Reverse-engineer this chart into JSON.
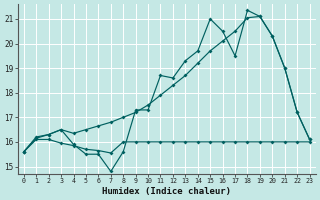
{
  "xlabel": "Humidex (Indice chaleur)",
  "background_color": "#c5e8e5",
  "grid_color": "#ffffff",
  "line_color": "#006060",
  "xlim": [
    -0.5,
    23.5
  ],
  "ylim": [
    14.7,
    21.6
  ],
  "x_ticks": [
    0,
    1,
    2,
    3,
    4,
    5,
    6,
    7,
    8,
    9,
    10,
    11,
    12,
    13,
    14,
    15,
    16,
    17,
    18,
    19,
    20,
    21,
    22,
    23
  ],
  "y_ticks": [
    15,
    16,
    17,
    18,
    19,
    20,
    21
  ],
  "line1_y": [
    15.6,
    16.2,
    16.3,
    16.5,
    15.9,
    15.5,
    15.5,
    14.8,
    15.6,
    17.3,
    17.3,
    18.7,
    18.6,
    19.3,
    19.7,
    21.0,
    20.5,
    19.5,
    21.35,
    21.1,
    20.3,
    19.0,
    17.2,
    16.1
  ],
  "line2_y": [
    15.6,
    16.1,
    16.1,
    15.95,
    15.85,
    15.7,
    15.65,
    15.55,
    16.0,
    16.0,
    16.0,
    16.0,
    16.0,
    16.0,
    16.0,
    16.0,
    16.0,
    16.0,
    16.0,
    16.0,
    16.0,
    16.0,
    16.0,
    16.0
  ],
  "line3_y": [
    15.6,
    16.15,
    16.3,
    16.5,
    16.35,
    16.5,
    16.65,
    16.8,
    17.0,
    17.2,
    17.5,
    17.9,
    18.3,
    18.7,
    19.2,
    19.7,
    20.1,
    20.5,
    21.05,
    21.1,
    20.3,
    19.0,
    17.2,
    16.1
  ]
}
